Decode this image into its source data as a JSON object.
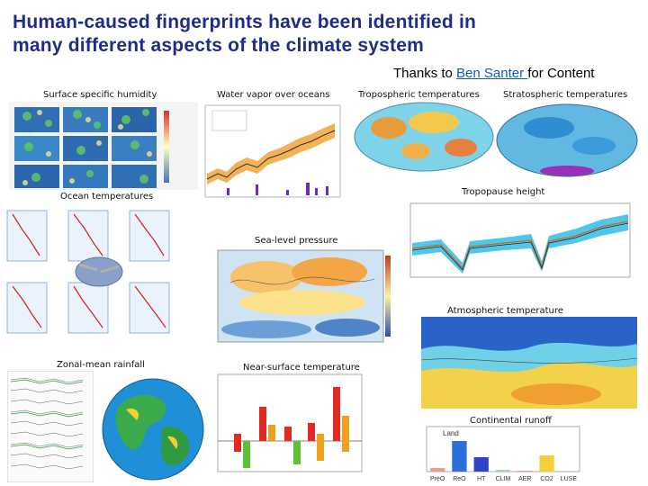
{
  "slide": {
    "title_line1": "Human-caused fingerprints have been identified in",
    "title_line2": "many different aspects of the climate system",
    "credit_prefix": "Thanks to ",
    "credit_link": "Ben Santer ",
    "credit_suffix": "for Content"
  },
  "panels": {
    "humidity": "Surface specific humidity",
    "water_vapor": "Water vapor over oceans",
    "tropo_temp": "Tropospheric temperatures",
    "strato_temp": "Stratospheric temperatures",
    "ocean_temp": "Ocean temperatures",
    "tropopause": "Tropopause height",
    "sea_level_pressure": "Sea-level pressure",
    "atmos_temp": "Atmospheric temperature",
    "zonal_rain": "Zonal-mean rainfall",
    "near_surface": "Near-surface temperature",
    "runoff": "Continental runoff"
  },
  "runoff_chart": {
    "categories": [
      "PreO",
      "ReO",
      "HT",
      "CLIM",
      "AER",
      "CO2",
      "LUSE"
    ],
    "land_label": "Land",
    "colors": [
      "#e8a08a",
      "#2d6fd6",
      "#2d44c8",
      "#a7d7a5",
      "#d98ec2",
      "#f3d03a",
      "#cfcfcf"
    ]
  },
  "colors": {
    "title": "#1f2d86",
    "link": "#1155cc"
  }
}
